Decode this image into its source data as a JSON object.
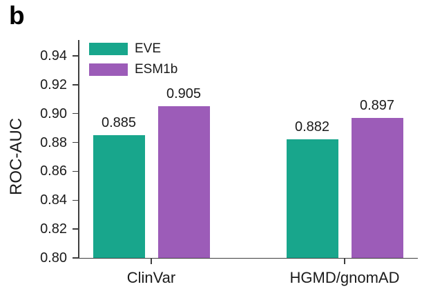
{
  "panel_label": "b",
  "colors": {
    "eve": "#18a68c",
    "esm1b": "#9c5cb8",
    "axis": "#3d3d3d",
    "text": "#1a1a1a",
    "background": "#ffffff"
  },
  "chart_data": {
    "type": "bar",
    "title": "",
    "xlabel": "",
    "ylabel": "ROC-AUC",
    "categories": [
      "ClinVar",
      "HGMD/gnomAD"
    ],
    "series": [
      {
        "name": "EVE",
        "color": "#18a68c",
        "values": [
          0.885,
          0.882
        ],
        "value_labels": [
          "0.885",
          "0.882"
        ]
      },
      {
        "name": "ESM1b",
        "color": "#9c5cb8",
        "values": [
          0.905,
          0.897
        ],
        "value_labels": [
          "0.905",
          "0.897"
        ]
      }
    ],
    "ylim": [
      0.8,
      0.95
    ],
    "yticks": [
      0.8,
      0.82,
      0.84,
      0.86,
      0.88,
      0.9,
      0.92,
      0.94
    ],
    "ytick_labels": [
      "0.80",
      "0.82",
      "0.84",
      "0.86",
      "0.88",
      "0.90",
      "0.92",
      "0.94"
    ],
    "grid": false,
    "legend_position": "upper-left-inside"
  }
}
